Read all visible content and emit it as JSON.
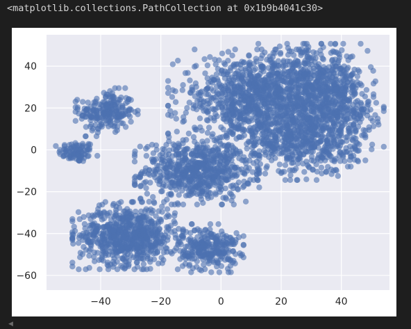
{
  "output": {
    "repr_text": "<matplotlib.collections.PathCollection at 0x1b9b4041c30>"
  },
  "scroll_hint_icon": "chevron-left-icon",
  "chart_data": {
    "type": "scatter",
    "title": "",
    "xlabel": "",
    "ylabel": "",
    "xlim": [
      -58,
      56
    ],
    "ylim": [
      -67,
      55
    ],
    "xticks": [
      -40,
      -20,
      0,
      20,
      40
    ],
    "yticks": [
      -60,
      -40,
      -20,
      0,
      20,
      40
    ],
    "xtick_labels": [
      "−40",
      "−20",
      "0",
      "20",
      "40"
    ],
    "ytick_labels": [
      "−60",
      "−40",
      "−20",
      "0",
      "20",
      "40"
    ],
    "grid": true,
    "style": "seaborn-darkgrid",
    "point_color": "#4c72b0",
    "point_alpha": 0.6,
    "background_color": "#eaeaf2",
    "clusters": [
      {
        "center": [
          -48,
          -1
        ],
        "spread": [
          3,
          2.5
        ],
        "count": 90
      },
      {
        "center": [
          -38,
          18
        ],
        "spread": [
          4.5,
          5
        ],
        "count": 220
      },
      {
        "center": [
          -8,
          -10
        ],
        "spread": [
          9,
          7
        ],
        "count": 650
      },
      {
        "center": [
          -31,
          -41
        ],
        "spread": [
          8,
          7
        ],
        "count": 720
      },
      {
        "center": [
          -4,
          -47
        ],
        "spread": [
          5,
          5
        ],
        "count": 280
      },
      {
        "center": [
          10,
          25
        ],
        "spread": [
          12,
          10
        ],
        "count": 800
      },
      {
        "center": [
          30,
          30
        ],
        "spread": [
          9,
          9
        ],
        "count": 600
      },
      {
        "center": [
          25,
          4
        ],
        "spread": [
          10,
          8
        ],
        "count": 500
      },
      {
        "center": [
          38,
          15
        ],
        "spread": [
          7,
          10
        ],
        "count": 300
      }
    ]
  }
}
